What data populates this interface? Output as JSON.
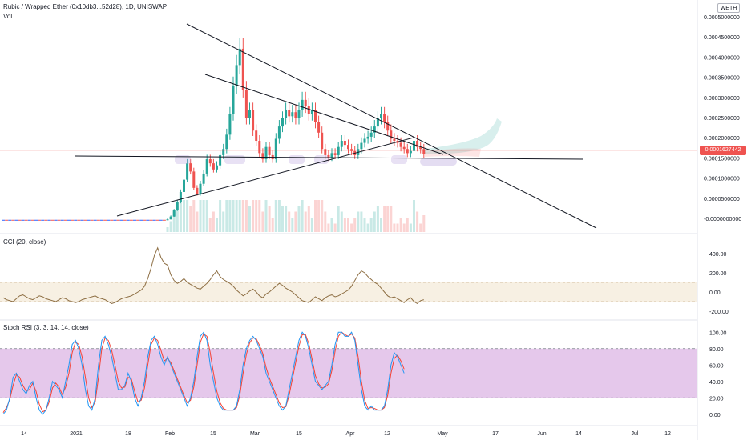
{
  "header": {
    "symbol_line": "Rubic / Wrapped Ether (0x10db3...52d28), 1D, UNISWAP",
    "vol_label": "Vol",
    "currency_badge": "WETH"
  },
  "price_pane": {
    "y_ticks": [
      "0.0005000000",
      "0.0004500000",
      "0.0004000000",
      "0.0003500000",
      "0.0003000000",
      "0.0002500000",
      "0.0002000000",
      "0.0001500000",
      "0.0001000000",
      "0.0000500000",
      "-0.0000000000"
    ],
    "last_price_label": "0.0001627442",
    "colors": {
      "up": "#26a69a",
      "down": "#ef5350",
      "trendline": "#131722",
      "highlight": "#b39ddb"
    }
  },
  "cci_pane": {
    "label": "CCI (20, close)",
    "y_ticks": [
      "400.00",
      "200.00",
      "0.00",
      "-200.00"
    ],
    "band_low": -100,
    "band_high": 100,
    "line_color": "#8d6e43"
  },
  "stoch_pane": {
    "label": "Stoch RSI (3, 3, 14, 14, close)",
    "y_ticks": [
      "100.00",
      "80.00",
      "60.00",
      "40.00",
      "20.00",
      "0.00"
    ],
    "band_low": 20,
    "band_high": 80,
    "k_color": "#2196f3",
    "d_color": "#f44336",
    "band_color": "#e1bee7"
  },
  "time_axis": {
    "labels": [
      "14",
      "2021",
      "18",
      "Feb",
      "15",
      "Mar",
      "15",
      "Apr",
      "12",
      "May",
      "17",
      "Jun",
      "14",
      "Jul",
      "12"
    ]
  },
  "chart_data": [
    {
      "type": "candlestick",
      "title": "Rubic / Wrapped Ether (0x10db3...52d28), 1D, UNISWAP",
      "ylim": [
        -2e-05,
        0.0005
      ],
      "note_series": "approximate daily close values",
      "close": [
        1e-06,
        1e-06,
        1e-06,
        1e-06,
        1e-06,
        1e-06,
        1e-06,
        1e-06,
        1e-06,
        1e-06,
        1e-06,
        1e-06,
        1e-06,
        1e-06,
        1e-06,
        1e-06,
        1e-06,
        1e-06,
        1e-06,
        1e-06,
        1e-06,
        1e-06,
        1e-06,
        1e-06,
        1e-06,
        1e-06,
        1e-06,
        1e-06,
        1e-06,
        1e-06,
        1e-06,
        1e-06,
        1e-06,
        1e-06,
        1e-06,
        1e-06,
        1e-06,
        1e-06,
        1e-06,
        1e-06,
        1e-06,
        1e-06,
        1e-06,
        1e-06,
        1e-06,
        1e-06,
        1e-06,
        1e-06,
        1e-06,
        1e-06,
        3e-06,
        1e-05,
        2.5e-05,
        4.5e-05,
        7e-05,
        0.0001,
        0.00014,
        0.00012,
        8e-05,
        6.5e-05,
        9e-05,
        0.000115,
        0.00015,
        0.00014,
        0.000125,
        0.000135,
        0.00016,
        0.000175,
        0.00021,
        0.00026,
        0.00033,
        0.00038,
        0.00042,
        0.00032,
        0.00025,
        0.00027,
        0.00022,
        0.000195,
        0.000165,
        0.00015,
        0.00018,
        0.00016,
        0.00015,
        0.0002,
        0.00023,
        0.00025,
        0.00027,
        0.000255,
        0.000265,
        0.00025,
        0.00027,
        0.000295,
        0.00028,
        0.00026,
        0.00027,
        0.00024,
        0.000215,
        0.000175,
        0.00016,
        0.000155,
        0.000165,
        0.00016,
        0.00018,
        0.000195,
        0.000185,
        0.000175,
        0.00017,
        0.00016,
        0.000175,
        0.00019,
        0.0002,
        0.000205,
        0.000215,
        0.00023,
        0.00025,
        0.00026,
        0.00024,
        0.00022,
        0.0002,
        0.000195,
        0.00019,
        0.00018,
        0.000175,
        0.000165,
        0.00017,
        0.000195,
        0.00018,
        0.000175,
        0.000163
      ]
    },
    {
      "type": "line",
      "title": "CCI (20, close)",
      "ylim": [
        -250,
        500
      ],
      "values": [
        -60,
        -80,
        -90,
        -100,
        -70,
        -40,
        -30,
        -50,
        -70,
        -80,
        -60,
        -40,
        -50,
        -70,
        -80,
        -90,
        -100,
        -80,
        -60,
        -70,
        -90,
        -100,
        -110,
        -100,
        -80,
        -70,
        -60,
        -50,
        -40,
        -60,
        -70,
        -80,
        -100,
        -120,
        -110,
        -90,
        -70,
        -60,
        -50,
        -40,
        -20,
        0,
        20,
        60,
        140,
        250,
        380,
        460,
        360,
        300,
        280,
        180,
        120,
        90,
        110,
        140,
        100,
        80,
        60,
        40,
        30,
        60,
        90,
        130,
        180,
        220,
        160,
        130,
        110,
        90,
        60,
        20,
        -10,
        -40,
        -20,
        10,
        30,
        0,
        -40,
        -60,
        -20,
        0,
        30,
        60,
        90,
        70,
        40,
        20,
        0,
        -30,
        -60,
        -90,
        -100,
        -110,
        -80,
        -50,
        -70,
        -90,
        -60,
        -40,
        -30,
        -50,
        -40,
        -20,
        0,
        20,
        60,
        120,
        180,
        220,
        200,
        160,
        130,
        100,
        80,
        40,
        0,
        -40,
        -60,
        -50,
        -70,
        -90,
        -110,
        -80,
        -60,
        -100,
        -120,
        -90,
        -80
      ]
    },
    {
      "type": "line",
      "title": "Stoch RSI (3, 3, 14, 14, close)",
      "ylim": [
        -10,
        110
      ],
      "series": [
        {
          "name": "K",
          "values": [
            0,
            5,
            20,
            45,
            50,
            40,
            30,
            25,
            35,
            40,
            20,
            5,
            0,
            5,
            20,
            40,
            35,
            30,
            20,
            40,
            60,
            85,
            90,
            80,
            60,
            30,
            10,
            5,
            20,
            60,
            90,
            95,
            85,
            70,
            50,
            30,
            30,
            35,
            50,
            40,
            20,
            10,
            20,
            40,
            70,
            90,
            95,
            85,
            70,
            60,
            70,
            60,
            50,
            40,
            30,
            20,
            10,
            20,
            40,
            70,
            95,
            100,
            90,
            60,
            40,
            20,
            10,
            5,
            5,
            5,
            5,
            10,
            30,
            60,
            80,
            90,
            95,
            90,
            80,
            70,
            50,
            40,
            30,
            20,
            10,
            5,
            10,
            30,
            50,
            70,
            90,
            100,
            95,
            80,
            60,
            40,
            35,
            30,
            35,
            40,
            60,
            85,
            100,
            100,
            95,
            95,
            100,
            90,
            60,
            30,
            10,
            5,
            10,
            5,
            5,
            5,
            10,
            30,
            60,
            75,
            70,
            60,
            50
          ]
        },
        {
          "name": "D",
          "values": [
            2,
            8,
            18,
            35,
            48,
            45,
            35,
            28,
            30,
            38,
            28,
            12,
            3,
            5,
            15,
            32,
            38,
            33,
            24,
            33,
            50,
            75,
            88,
            85,
            70,
            45,
            20,
            8,
            15,
            45,
            80,
            93,
            90,
            78,
            60,
            40,
            32,
            33,
            45,
            43,
            28,
            15,
            17,
            32,
            60,
            85,
            93,
            90,
            78,
            65,
            68,
            63,
            53,
            43,
            33,
            23,
            14,
            17,
            33,
            60,
            88,
            98,
            95,
            75,
            50,
            28,
            14,
            7,
            5,
            5,
            5,
            8,
            23,
            50,
            73,
            87,
            93,
            92,
            84,
            74,
            57,
            44,
            34,
            24,
            14,
            8,
            9,
            23,
            43,
            63,
            83,
            97,
            97,
            86,
            67,
            47,
            37,
            32,
            33,
            37,
            53,
            77,
            95,
            100,
            97,
            95,
            98,
            93,
            70,
            40,
            17,
            7,
            8,
            7,
            5,
            5,
            8,
            23,
            50,
            68,
            72,
            65,
            55
          ]
        }
      ]
    }
  ]
}
